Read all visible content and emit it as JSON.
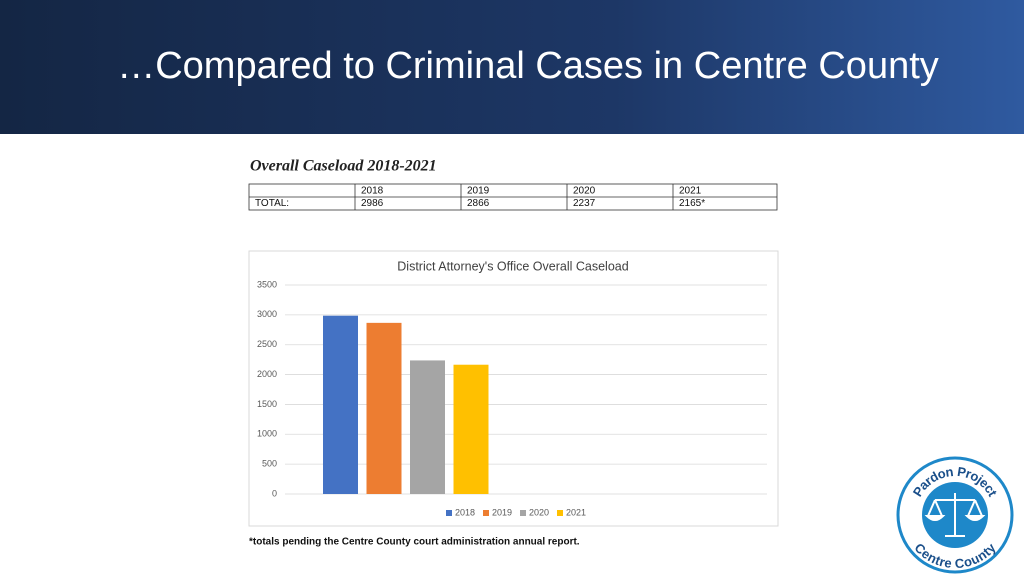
{
  "slide_title": "…Compared to Criminal Cases in Centre County",
  "table": {
    "title": "Overall Caseload 2018-2021",
    "header": [
      "2018",
      "2019",
      "2020",
      "2021"
    ],
    "rows": [
      [
        "TOTAL:",
        "2986",
        "2866",
        "2237",
        "2165*"
      ]
    ]
  },
  "chart_data": {
    "type": "bar",
    "title": "District Attorney's Office Overall Caseload",
    "categories": [
      null
    ],
    "series": [
      {
        "name": "2018",
        "color": "#4472c4",
        "values": [
          2986
        ]
      },
      {
        "name": "2019",
        "color": "#ed7d31",
        "values": [
          2866
        ]
      },
      {
        "name": "2020",
        "color": "#a5a5a5",
        "values": [
          2237
        ]
      },
      {
        "name": "2021",
        "color": "#ffc000",
        "values": [
          2165
        ]
      }
    ],
    "ylim": [
      0,
      3500
    ],
    "yticks": [
      0,
      500,
      1000,
      1500,
      2000,
      2500,
      3000,
      3500
    ],
    "grid": true,
    "legend": "bottom"
  },
  "footnote": "*totals pending the Centre County court administration annual report.",
  "logo": {
    "top_text": "Pardon Project",
    "bottom_text": "Centre County"
  }
}
